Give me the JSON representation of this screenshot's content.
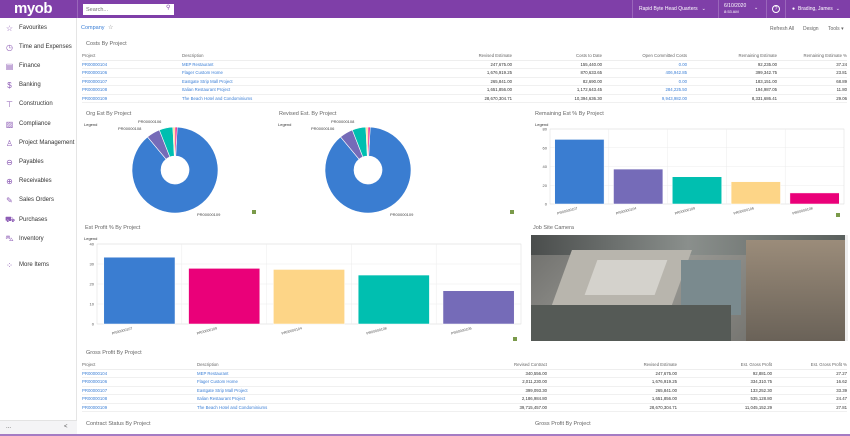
{
  "topbar": {
    "logo": "myob",
    "search_placeholder": "Search...",
    "branch": "Rapid Byte Head Quarters",
    "date": "6/10/2020",
    "time": "8:53 AM",
    "user": "Brading, James"
  },
  "colors": {
    "brand": "#7f3fa8",
    "link": "#3b7fd6",
    "blue": "#3a7dd1",
    "purple": "#756bb8",
    "teal": "#00bfb0",
    "yellow": "#fdd587",
    "pink": "#ea0079"
  },
  "sidebar": {
    "items": [
      {
        "label": "Favourites",
        "icon": "star-icon"
      },
      {
        "label": "Time and Expenses",
        "icon": "stopwatch-icon"
      },
      {
        "label": "Finance",
        "icon": "calculator-icon"
      },
      {
        "label": "Banking",
        "icon": "dollar-icon"
      },
      {
        "label": "Construction",
        "icon": "crane-icon"
      },
      {
        "label": "Compliance",
        "icon": "document-icon"
      },
      {
        "label": "Project Management",
        "icon": "person-icon"
      },
      {
        "label": "Payables",
        "icon": "minus-circle-icon"
      },
      {
        "label": "Receivables",
        "icon": "plus-circle-icon"
      },
      {
        "label": "Sales Orders",
        "icon": "edit-icon"
      },
      {
        "label": "Purchases",
        "icon": "cart-icon"
      },
      {
        "label": "Inventory",
        "icon": "truck-icon"
      },
      {
        "label": "More Items",
        "icon": "grid-icon"
      }
    ],
    "bottom_more": "...",
    "collapse": "<"
  },
  "breadcrumb": "Company",
  "toolbar": {
    "refresh": "Refresh All",
    "design": "Design",
    "tools": "Tools"
  },
  "costs": {
    "title": "Costs By Project",
    "columns": [
      "Project",
      "Description",
      "Revised Estimate",
      "Costs to Date",
      "Open Committed Costs",
      "Remaining Estimate",
      "Remaining Estimate %"
    ],
    "rows": [
      [
        "PR00000104",
        "MEP Restaurant",
        "247,675.00",
        "155,440.00",
        "0.00",
        "92,235.00",
        "37.24"
      ],
      [
        "PR00000106",
        "Flager Custom Home",
        "1,676,919.25",
        "870,633.65",
        "406,942.85",
        "399,342.75",
        "23.81"
      ],
      [
        "PR00000107",
        "Eastgate Strip Mall Project",
        "265,841.00",
        "82,690.00",
        "0.00",
        "183,151.00",
        "68.89"
      ],
      [
        "PR00000108",
        "Italian Restaurant Project",
        "1,651,856.00",
        "1,172,643.45",
        "284,225.50",
        "194,987.05",
        "11.80"
      ],
      [
        "PR00000109",
        "The Beach Hotel and Condominiums",
        "28,670,304.71",
        "10,394,636.30",
        "9,943,982.00",
        "8,331,686.41",
        "29.06"
      ]
    ]
  },
  "gross": {
    "title": "Gross Profit By Project",
    "columns": [
      "Project",
      "Description",
      "Revised Contract",
      "Revised Estimate",
      "Est. Gross Profit",
      "Est. Gross Profit %"
    ],
    "rows": [
      [
        "PR00000104",
        "MEP Restaurant",
        "340,556.00",
        "247,675.00",
        "92,881.00",
        "27.27"
      ],
      [
        "PR00000106",
        "Flager Custom Home",
        "2,011,230.00",
        "1,676,919.25",
        "334,310.75",
        "16.62"
      ],
      [
        "PR00000107",
        "Eastgate Strip Mall Project",
        "399,093.30",
        "265,841.00",
        "133,252.30",
        "33.39"
      ],
      [
        "PR00000108",
        "Italian Restaurant Project",
        "2,186,984.80",
        "1,651,856.00",
        "535,128.80",
        "24.47"
      ],
      [
        "PR00000109",
        "The Beach Hotel and Condominiums",
        "39,715,457.00",
        "28,670,304.71",
        "11,045,152.29",
        "27.81"
      ]
    ]
  },
  "contract_title": "Contract Status By Project",
  "gross_chart_title": "Gross Profit By Project",
  "camera_title": "Job Site Camera",
  "legend": "Legend",
  "chart_data": [
    {
      "type": "pie",
      "title": "Org Est By Project",
      "categories": [
        "PR00000109",
        "PR00000108",
        "PR00000106",
        "PR00000107",
        "PR00000104"
      ],
      "values": [
        28670304.71,
        1651856,
        1676919.25,
        265841,
        247675
      ],
      "colors": [
        "#3a7dd1",
        "#756bb8",
        "#00bfb0",
        "#fdd587",
        "#ea0079"
      ],
      "labels_shown": [
        "PR00000106",
        "PR00000108",
        "PR00000109"
      ],
      "donut": true
    },
    {
      "type": "pie",
      "title": "Revised Est. By Project",
      "categories": [
        "PR00000109",
        "PR00000108",
        "PR00000106",
        "PR00000107",
        "PR00000104"
      ],
      "values": [
        28670304.71,
        1651856,
        1676919.25,
        265841,
        247675
      ],
      "colors": [
        "#3a7dd1",
        "#756bb8",
        "#00bfb0",
        "#fdd587",
        "#ea0079"
      ],
      "labels_shown": [
        "PR00000108",
        "PR00000106",
        "PR00000109"
      ],
      "donut": true
    },
    {
      "type": "bar",
      "title": "Remaining Est % By Project",
      "categories": [
        "PR00000107",
        "PR00000104",
        "PR00000109",
        "PR00000106",
        "PR00000108"
      ],
      "values": [
        68.89,
        37.24,
        29.06,
        23.81,
        11.8
      ],
      "colors": [
        "#3a7dd1",
        "#756bb8",
        "#00bfb0",
        "#fdd587",
        "#ea0079"
      ],
      "ylim": [
        0,
        80
      ],
      "yticks": [
        0,
        20,
        40,
        60,
        80
      ],
      "grid": true
    },
    {
      "type": "bar",
      "title": "Est Profit % By Project",
      "categories": [
        "PR00000107",
        "PR00000109",
        "PR00000104",
        "PR00000108",
        "PR00000106"
      ],
      "values": [
        33.39,
        27.81,
        27.27,
        24.47,
        16.62
      ],
      "colors": [
        "#3a7dd1",
        "#ea0079",
        "#fdd587",
        "#00bfb0",
        "#756bb8"
      ],
      "ylim": [
        0,
        40
      ],
      "yticks": [
        0,
        10,
        20,
        30,
        40
      ],
      "grid": true
    }
  ]
}
